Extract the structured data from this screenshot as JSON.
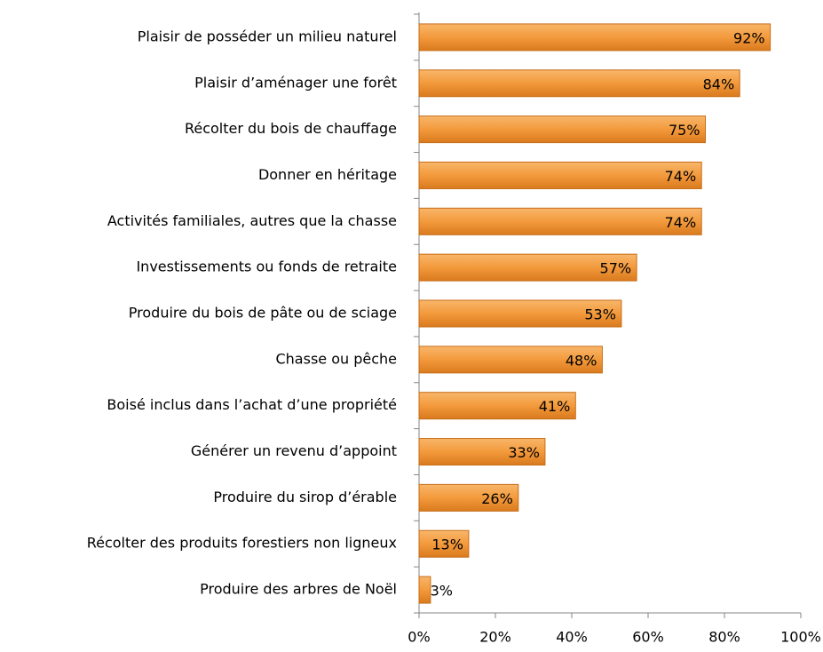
{
  "chart_data": {
    "type": "bar",
    "orientation": "horizontal",
    "categories": [
      "Plaisir de posséder un milieu naturel",
      "Plaisir d’aménager une forêt",
      "Récolter du bois de chauffage",
      "Donner en héritage",
      "Activités familiales, autres que la chasse",
      "Investissements ou fonds de retraite",
      "Produire du bois de pâte ou de sciage",
      "Chasse ou pêche",
      "Boisé inclus dans l’achat d’une propriété",
      "Générer un revenu d’appoint",
      "Produire du sirop d’érable",
      "Récolter des produits forestiers non ligneux",
      "Produire des arbres de Noël"
    ],
    "values": [
      92,
      84,
      75,
      74,
      74,
      57,
      53,
      48,
      41,
      33,
      26,
      13,
      3
    ],
    "value_labels": [
      "92%",
      "84%",
      "75%",
      "74%",
      "74%",
      "57%",
      "53%",
      "48%",
      "41%",
      "33%",
      "26%",
      "13%",
      "3%"
    ],
    "color": "#f39a3c",
    "xlim": [
      0,
      100
    ],
    "xticks": [
      {
        "value": 0,
        "label": "0%"
      },
      {
        "value": 20,
        "label": "20%"
      },
      {
        "value": 40,
        "label": "40%"
      },
      {
        "value": 60,
        "label": "60%"
      },
      {
        "value": 80,
        "label": "80%"
      },
      {
        "value": 100,
        "label": "100%"
      }
    ]
  }
}
